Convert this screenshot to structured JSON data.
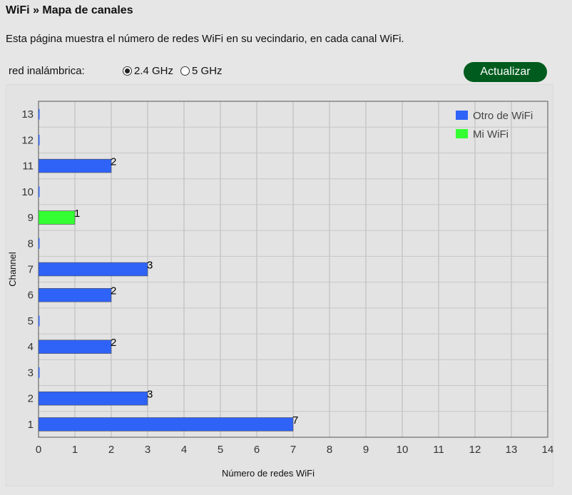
{
  "page": {
    "title": "WiFi » Mapa de canales",
    "description": "Esta página muestra el número de redes WiFi en su vecindario, en cada canal WiFi."
  },
  "band_selector": {
    "label": "red inalámbrica:",
    "options": [
      {
        "label": "2.4 GHz",
        "selected": true
      },
      {
        "label": "5 GHz",
        "selected": false
      }
    ]
  },
  "refresh_button": {
    "label": "Actualizar"
  },
  "chart_data": {
    "type": "bar",
    "orientation": "horizontal",
    "categories": [
      "1",
      "2",
      "3",
      "4",
      "5",
      "6",
      "7",
      "8",
      "9",
      "10",
      "11",
      "12",
      "13"
    ],
    "series": [
      {
        "name": "Otro de WiFi",
        "color": "#2f63f7",
        "values": [
          7,
          3,
          0,
          2,
          0,
          2,
          3,
          0,
          0,
          0,
          2,
          0,
          0
        ]
      },
      {
        "name": "Mi WiFi",
        "color": "#33ff33",
        "values": [
          0,
          0,
          0,
          0,
          0,
          0,
          0,
          0,
          1,
          0,
          0,
          0,
          0
        ]
      }
    ],
    "xlabel": "Número de redes WiFi",
    "ylabel": "Channel",
    "xlim": [
      0,
      14
    ],
    "xticks": [
      "0",
      "1",
      "2",
      "3",
      "4",
      "5",
      "6",
      "7",
      "8",
      "9",
      "10",
      "11",
      "12",
      "13",
      "14"
    ],
    "grid": true,
    "legend": "top-right"
  }
}
